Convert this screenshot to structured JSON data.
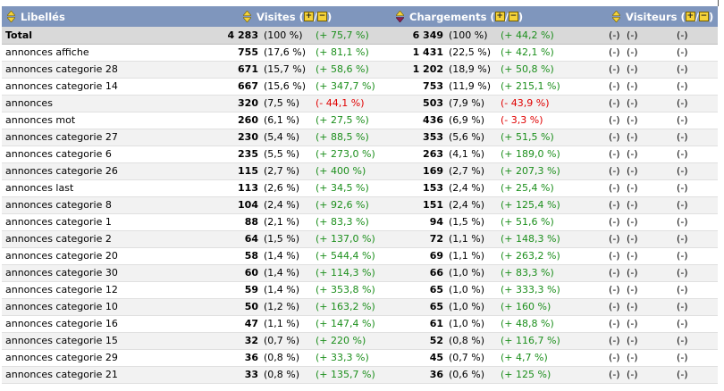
{
  "columns": {
    "labels": "Libellés",
    "visits": "Visites",
    "loads": "Chargements",
    "visitors": "Visiteurs",
    "plus_minus": "+/−",
    "sort_icon": "sort-updown-icon"
  },
  "colors": {
    "header_bg": "#7F96BD",
    "positive": "#1C8F1C",
    "negative": "#E00000",
    "total_bg": "#D9D9D9"
  },
  "rows": [
    {
      "label": "Total",
      "visits": "4 283",
      "visits_pct": "(100 %)",
      "visits_trend": "(+ 75,7 %)",
      "visits_sign": "pos",
      "loads": "6 349",
      "loads_pct": "(100 %)",
      "loads_trend": "(+ 44,2 %)",
      "loads_sign": "pos",
      "v1": "(-)",
      "v2": "(-)",
      "v3": "(-)"
    },
    {
      "label": "annonces affiche",
      "visits": "755",
      "visits_pct": "(17,6 %)",
      "visits_trend": "(+ 81,1 %)",
      "visits_sign": "pos",
      "loads": "1 431",
      "loads_pct": "(22,5 %)",
      "loads_trend": "(+ 42,1 %)",
      "loads_sign": "pos",
      "v1": "(-)",
      "v2": "(-)",
      "v3": "(-)"
    },
    {
      "label": "annonces categorie 28",
      "visits": "671",
      "visits_pct": "(15,7 %)",
      "visits_trend": "(+ 58,6 %)",
      "visits_sign": "pos",
      "loads": "1 202",
      "loads_pct": "(18,9 %)",
      "loads_trend": "(+ 50,8 %)",
      "loads_sign": "pos",
      "v1": "(-)",
      "v2": "(-)",
      "v3": "(-)"
    },
    {
      "label": "annonces categorie 14",
      "visits": "667",
      "visits_pct": "(15,6 %)",
      "visits_trend": "(+ 347,7 %)",
      "visits_sign": "pos",
      "loads": "753",
      "loads_pct": "(11,9 %)",
      "loads_trend": "(+ 215,1 %)",
      "loads_sign": "pos",
      "v1": "(-)",
      "v2": "(-)",
      "v3": "(-)"
    },
    {
      "label": "annonces",
      "visits": "320",
      "visits_pct": "(7,5 %)",
      "visits_trend": "(- 44,1 %)",
      "visits_sign": "neg",
      "loads": "503",
      "loads_pct": "(7,9 %)",
      "loads_trend": "(- 43,9 %)",
      "loads_sign": "neg",
      "v1": "(-)",
      "v2": "(-)",
      "v3": "(-)"
    },
    {
      "label": "annonces mot",
      "visits": "260",
      "visits_pct": "(6,1 %)",
      "visits_trend": "(+ 27,5 %)",
      "visits_sign": "pos",
      "loads": "436",
      "loads_pct": "(6,9 %)",
      "loads_trend": "(- 3,3 %)",
      "loads_sign": "neg",
      "v1": "(-)",
      "v2": "(-)",
      "v3": "(-)"
    },
    {
      "label": "annonces categorie 27",
      "visits": "230",
      "visits_pct": "(5,4 %)",
      "visits_trend": "(+ 88,5 %)",
      "visits_sign": "pos",
      "loads": "353",
      "loads_pct": "(5,6 %)",
      "loads_trend": "(+ 51,5 %)",
      "loads_sign": "pos",
      "v1": "(-)",
      "v2": "(-)",
      "v3": "(-)"
    },
    {
      "label": "annonces categorie 6",
      "visits": "235",
      "visits_pct": "(5,5 %)",
      "visits_trend": "(+ 273,0 %)",
      "visits_sign": "pos",
      "loads": "263",
      "loads_pct": "(4,1 %)",
      "loads_trend": "(+ 189,0 %)",
      "loads_sign": "pos",
      "v1": "(-)",
      "v2": "(-)",
      "v3": "(-)"
    },
    {
      "label": "annonces categorie 26",
      "visits": "115",
      "visits_pct": "(2,7 %)",
      "visits_trend": "(+ 400 %)",
      "visits_sign": "pos",
      "loads": "169",
      "loads_pct": "(2,7 %)",
      "loads_trend": "(+ 207,3 %)",
      "loads_sign": "pos",
      "v1": "(-)",
      "v2": "(-)",
      "v3": "(-)"
    },
    {
      "label": "annonces last",
      "visits": "113",
      "visits_pct": "(2,6 %)",
      "visits_trend": "(+ 34,5 %)",
      "visits_sign": "pos",
      "loads": "153",
      "loads_pct": "(2,4 %)",
      "loads_trend": "(+ 25,4 %)",
      "loads_sign": "pos",
      "v1": "(-)",
      "v2": "(-)",
      "v3": "(-)"
    },
    {
      "label": "annonces categorie 8",
      "visits": "104",
      "visits_pct": "(2,4 %)",
      "visits_trend": "(+ 92,6 %)",
      "visits_sign": "pos",
      "loads": "151",
      "loads_pct": "(2,4 %)",
      "loads_trend": "(+ 125,4 %)",
      "loads_sign": "pos",
      "v1": "(-)",
      "v2": "(-)",
      "v3": "(-)"
    },
    {
      "label": "annonces categorie 1",
      "visits": "88",
      "visits_pct": "(2,1 %)",
      "visits_trend": "(+ 83,3 %)",
      "visits_sign": "pos",
      "loads": "94",
      "loads_pct": "(1,5 %)",
      "loads_trend": "(+ 51,6 %)",
      "loads_sign": "pos",
      "v1": "(-)",
      "v2": "(-)",
      "v3": "(-)"
    },
    {
      "label": "annonces categorie 2",
      "visits": "64",
      "visits_pct": "(1,5 %)",
      "visits_trend": "(+ 137,0 %)",
      "visits_sign": "pos",
      "loads": "72",
      "loads_pct": "(1,1 %)",
      "loads_trend": "(+ 148,3 %)",
      "loads_sign": "pos",
      "v1": "(-)",
      "v2": "(-)",
      "v3": "(-)"
    },
    {
      "label": "annonces categorie 20",
      "visits": "58",
      "visits_pct": "(1,4 %)",
      "visits_trend": "(+ 544,4 %)",
      "visits_sign": "pos",
      "loads": "69",
      "loads_pct": "(1,1 %)",
      "loads_trend": "(+ 263,2 %)",
      "loads_sign": "pos",
      "v1": "(-)",
      "v2": "(-)",
      "v3": "(-)"
    },
    {
      "label": "annonces categorie 30",
      "visits": "60",
      "visits_pct": "(1,4 %)",
      "visits_trend": "(+ 114,3 %)",
      "visits_sign": "pos",
      "loads": "66",
      "loads_pct": "(1,0 %)",
      "loads_trend": "(+ 83,3 %)",
      "loads_sign": "pos",
      "v1": "(-)",
      "v2": "(-)",
      "v3": "(-)"
    },
    {
      "label": "annonces categorie 12",
      "visits": "59",
      "visits_pct": "(1,4 %)",
      "visits_trend": "(+ 353,8 %)",
      "visits_sign": "pos",
      "loads": "65",
      "loads_pct": "(1,0 %)",
      "loads_trend": "(+ 333,3 %)",
      "loads_sign": "pos",
      "v1": "(-)",
      "v2": "(-)",
      "v3": "(-)"
    },
    {
      "label": "annonces categorie 10",
      "visits": "50",
      "visits_pct": "(1,2 %)",
      "visits_trend": "(+ 163,2 %)",
      "visits_sign": "pos",
      "loads": "65",
      "loads_pct": "(1,0 %)",
      "loads_trend": "(+ 160 %)",
      "loads_sign": "pos",
      "v1": "(-)",
      "v2": "(-)",
      "v3": "(-)"
    },
    {
      "label": "annonces categorie 16",
      "visits": "47",
      "visits_pct": "(1,1 %)",
      "visits_trend": "(+ 147,4 %)",
      "visits_sign": "pos",
      "loads": "61",
      "loads_pct": "(1,0 %)",
      "loads_trend": "(+ 48,8 %)",
      "loads_sign": "pos",
      "v1": "(-)",
      "v2": "(-)",
      "v3": "(-)"
    },
    {
      "label": "annonces categorie 15",
      "visits": "32",
      "visits_pct": "(0,7 %)",
      "visits_trend": "(+ 220 %)",
      "visits_sign": "pos",
      "loads": "52",
      "loads_pct": "(0,8 %)",
      "loads_trend": "(+ 116,7 %)",
      "loads_sign": "pos",
      "v1": "(-)",
      "v2": "(-)",
      "v3": "(-)"
    },
    {
      "label": "annonces categorie 29",
      "visits": "36",
      "visits_pct": "(0,8 %)",
      "visits_trend": "(+ 33,3 %)",
      "visits_sign": "pos",
      "loads": "45",
      "loads_pct": "(0,7 %)",
      "loads_trend": "(+ 4,7 %)",
      "loads_sign": "pos",
      "v1": "(-)",
      "v2": "(-)",
      "v3": "(-)"
    },
    {
      "label": "annonces categorie 21",
      "visits": "33",
      "visits_pct": "(0,8 %)",
      "visits_trend": "(+ 135,7 %)",
      "visits_sign": "pos",
      "loads": "36",
      "loads_pct": "(0,6 %)",
      "loads_trend": "(+ 125 %)",
      "loads_sign": "pos",
      "v1": "(-)",
      "v2": "(-)",
      "v3": "(-)"
    }
  ]
}
